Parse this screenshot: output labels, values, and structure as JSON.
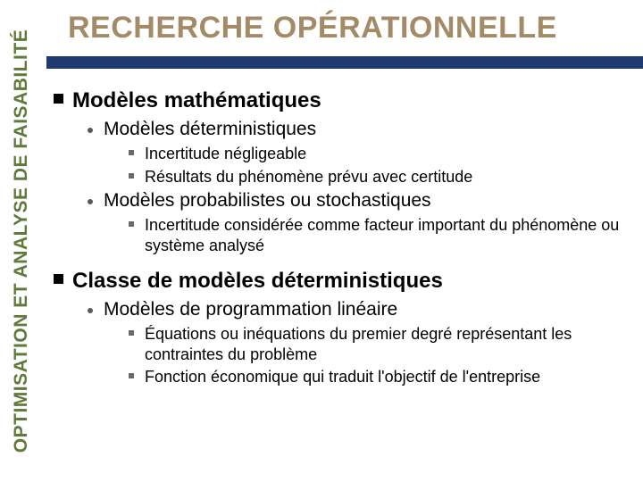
{
  "colors": {
    "side_text": "#5f7a3a",
    "title_text": "#a48b68",
    "bar": "#1f3a6f",
    "background": "#ffffff",
    "l1_bullet": "#000000",
    "l2_bullet": "#5a5a5a",
    "l3_bullet": "#6a6a6a"
  },
  "typography": {
    "side_fontsize_pt": 16,
    "title_fontsize_pt": 26,
    "l1_fontsize_pt": 18,
    "l2_fontsize_pt": 16,
    "l3_fontsize_pt": 14,
    "font_family": "Arial"
  },
  "side_label": "OPTIMISATION ET ANALYSE DE FAISABILITÉ",
  "title": "RECHERCHE OPÉRATIONNELLE",
  "sections": [
    {
      "heading": "Modèles mathématiques",
      "items": [
        {
          "text": "Modèles déterministiques",
          "subitems": [
            "Incertitude négligeable",
            "Résultats du phénomène prévu avec certitude"
          ]
        },
        {
          "text": "Modèles probabilistes ou stochastiques",
          "subitems": [
            "Incertitude considérée comme facteur important du phénomène ou système analysé"
          ]
        }
      ]
    },
    {
      "heading": "Classe de modèles déterministiques",
      "items": [
        {
          "text": "Modèles de programmation linéaire",
          "subitems": [
            "Équations ou inéquations du premier degré représentant les contraintes du problème",
            "Fonction économique qui traduit l'objectif de l'entreprise"
          ]
        }
      ]
    }
  ]
}
